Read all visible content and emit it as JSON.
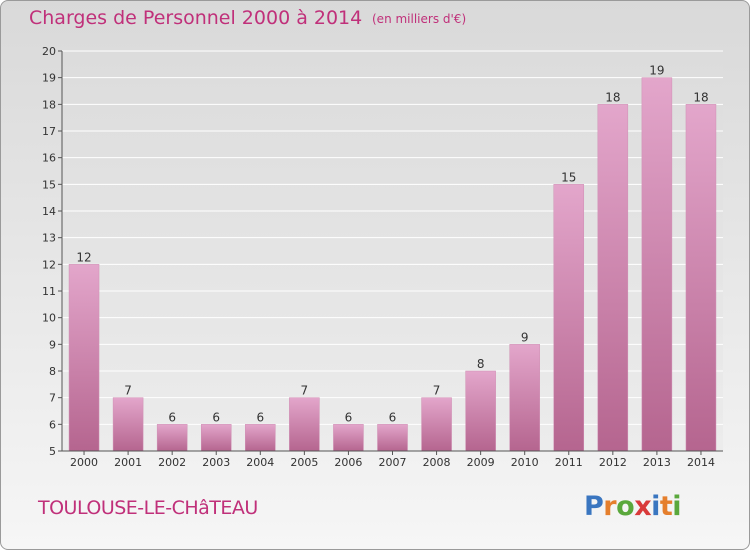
{
  "header": {
    "title": "Charges de Personnel 2000 à 2014",
    "subtitle": "(en milliers d'€)"
  },
  "footer": {
    "commune": "TOULOUSE-LE-CHâTEAU",
    "logo": {
      "letters": [
        "P",
        "r",
        "o",
        "x",
        "i",
        "t",
        "i"
      ],
      "colors": [
        "#3a76c0",
        "#e57f2d",
        "#5aa83c",
        "#d93a3a",
        "#3a76c0",
        "#e57f2d",
        "#5aa83c"
      ]
    }
  },
  "colors": {
    "accent": "#c0307a",
    "bar_top": "#e3a6cb",
    "bar_bottom": "#b5658f"
  },
  "chart_data": {
    "type": "bar",
    "title": "Charges de Personnel 2000 à 2014",
    "subtitle": "(en milliers d'€)",
    "categories": [
      "2000",
      "2001",
      "2002",
      "2003",
      "2004",
      "2005",
      "2006",
      "2007",
      "2008",
      "2009",
      "2010",
      "2011",
      "2012",
      "2013",
      "2014"
    ],
    "values": [
      12,
      7,
      6,
      6,
      6,
      7,
      6,
      6,
      7,
      8,
      9,
      15,
      18,
      19,
      18
    ],
    "ylim": [
      5,
      20
    ],
    "yticks": [
      5,
      6,
      7,
      8,
      9,
      10,
      11,
      12,
      13,
      14,
      15,
      16,
      17,
      18,
      19,
      20
    ],
    "grid": true,
    "legend": false
  }
}
